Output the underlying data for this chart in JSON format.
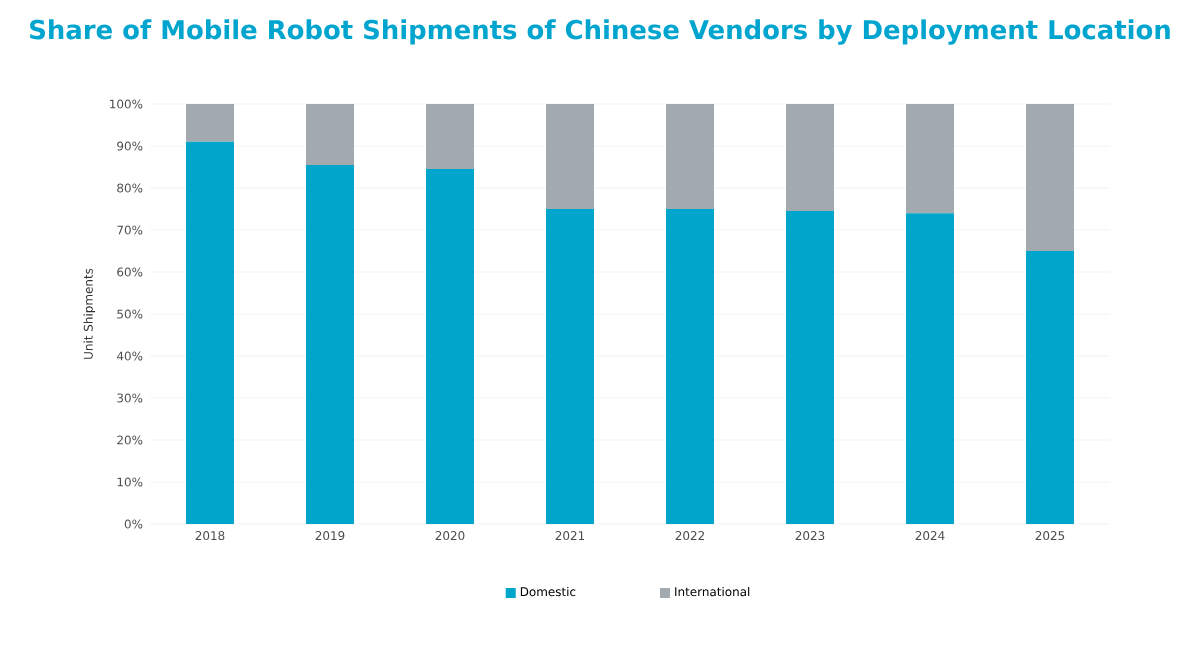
{
  "chart_data": {
    "type": "bar",
    "stacked": true,
    "title": "Share of Mobile Robot Shipments of Chinese Vendors by Deployment Location",
    "ylabel": "Unit Shipments",
    "categories": [
      "2018",
      "2019",
      "2020",
      "2021",
      "2022",
      "2023",
      "2024",
      "2025"
    ],
    "series": [
      {
        "name": "Domestic",
        "color": "#00a5cb",
        "values": [
          91,
          85.5,
          84.5,
          75,
          75,
          74.5,
          74,
          65
        ]
      },
      {
        "name": "International",
        "color": "#a2aab0",
        "values": [
          9,
          14.5,
          15.5,
          25,
          25,
          25.5,
          26,
          35
        ]
      }
    ],
    "ylim": [
      0,
      100
    ],
    "yticks": [
      {
        "value": 0,
        "label": "0%"
      },
      {
        "value": 10,
        "label": "10%"
      },
      {
        "value": 20,
        "label": "20%"
      },
      {
        "value": 30,
        "label": "30%"
      },
      {
        "value": 40,
        "label": "40%"
      },
      {
        "value": 50,
        "label": "50%"
      },
      {
        "value": 60,
        "label": "60%"
      },
      {
        "value": 70,
        "label": "70%"
      },
      {
        "value": 80,
        "label": "80%"
      },
      {
        "value": 90,
        "label": "90%"
      },
      {
        "value": 100,
        "label": "100%"
      }
    ],
    "grid": "y",
    "legend": "bottom"
  }
}
